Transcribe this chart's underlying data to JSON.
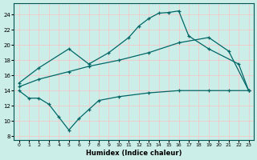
{
  "xlabel": "Humidex (Indice chaleur)",
  "bg_color": "#cceee8",
  "grid_color": "#f2c8c8",
  "line_color": "#006666",
  "xlim": [
    -0.5,
    23.5
  ],
  "ylim": [
    7.5,
    25.5
  ],
  "yticks": [
    8,
    10,
    12,
    14,
    16,
    18,
    20,
    22,
    24
  ],
  "xticks": [
    0,
    1,
    2,
    3,
    4,
    5,
    6,
    7,
    8,
    9,
    10,
    11,
    12,
    13,
    14,
    15,
    16,
    17,
    18,
    19,
    20,
    21,
    22,
    23
  ],
  "series1_x": [
    0,
    2,
    5,
    7,
    9,
    11,
    12,
    13,
    14,
    15,
    16,
    17,
    19,
    22,
    23
  ],
  "series1_y": [
    15,
    17,
    19.5,
    17.5,
    19,
    21,
    22.5,
    23.5,
    24.2,
    24.3,
    24.5,
    21.2,
    19.5,
    17.5,
    14.0
  ],
  "series2_x": [
    0,
    2,
    5,
    7,
    10,
    13,
    16,
    19,
    21,
    23
  ],
  "series2_y": [
    14.5,
    15.5,
    16.5,
    17.2,
    18.0,
    19.0,
    20.3,
    21.0,
    19.2,
    14.0
  ],
  "series3_x": [
    0,
    1,
    2,
    3,
    4,
    5,
    6,
    7,
    8,
    10,
    13,
    16,
    19,
    21,
    23
  ],
  "series3_y": [
    14.0,
    13.0,
    13.0,
    12.2,
    10.5,
    8.8,
    10.3,
    11.5,
    12.7,
    13.2,
    13.7,
    14.0,
    14.0,
    14.0,
    14.0
  ]
}
